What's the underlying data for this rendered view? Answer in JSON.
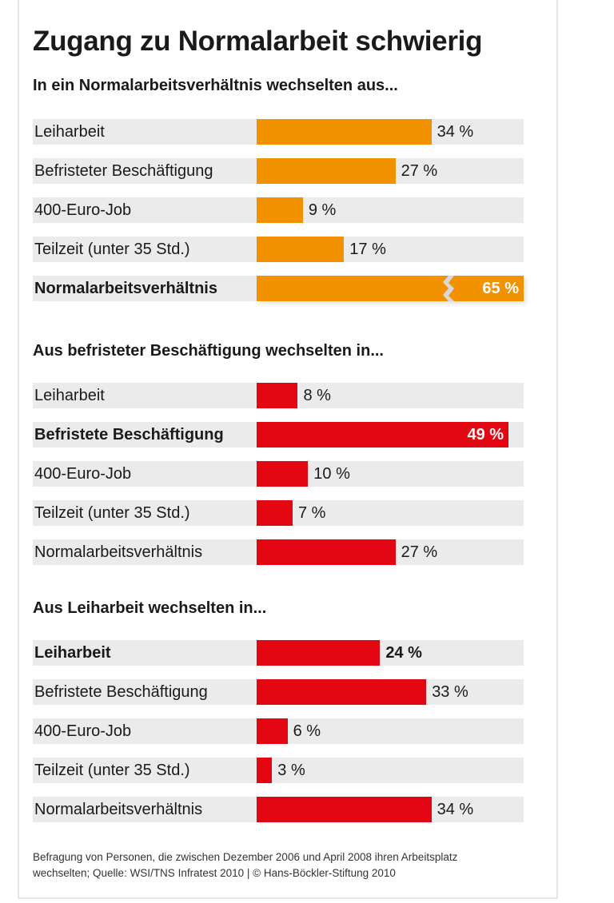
{
  "chart_data": {
    "type": "bar",
    "orientation": "horizontal",
    "title": "Zugang zu Normalarbeit schwierig",
    "unit": "%",
    "xlim": [
      0,
      52
    ],
    "grid": false,
    "colors": {
      "orange": "#f39200",
      "red": "#e30613",
      "track": "#ebebeb"
    },
    "panels": [
      {
        "title": "In ein Normalarbeitsverhältnis wechselten aus...",
        "color": "#f39200",
        "rows": [
          {
            "label": "Leiharbeit",
            "value": 34,
            "value_label": "34 %",
            "highlight": false
          },
          {
            "label": "Befristeter Beschäftigung",
            "value": 27,
            "value_label": "27 %",
            "highlight": false
          },
          {
            "label": "400-Euro-Job",
            "value": 9,
            "value_label": "9 %",
            "highlight": false
          },
          {
            "label": "Teilzeit (unter 35 Std.)",
            "value": 17,
            "value_label": "17 %",
            "highlight": false
          },
          {
            "label": "Normalarbeitsverhältnis",
            "value": 65,
            "value_label": "65 %",
            "highlight": true,
            "broken_axis": true
          }
        ]
      },
      {
        "title": "Aus befristeter Beschäftigung wechselten in...",
        "color": "#e30613",
        "rows": [
          {
            "label": "Leiharbeit",
            "value": 8,
            "value_label": "8 %",
            "highlight": false
          },
          {
            "label": "Befristete Beschäftigung",
            "value": 49,
            "value_label": "49 %",
            "highlight": true
          },
          {
            "label": "400-Euro-Job",
            "value": 10,
            "value_label": "10 %",
            "highlight": false
          },
          {
            "label": "Teilzeit (unter 35 Std.)",
            "value": 7,
            "value_label": "7 %",
            "highlight": false
          },
          {
            "label": "Normalarbeitsverhältnis",
            "value": 27,
            "value_label": "27 %",
            "highlight": false
          }
        ]
      },
      {
        "title": "Aus Leiharbeit wechselten in...",
        "color": "#e30613",
        "rows": [
          {
            "label": "Leiharbeit",
            "value": 24,
            "value_label": "24 %",
            "highlight": true
          },
          {
            "label": "Befristete Beschäftigung",
            "value": 33,
            "value_label": "33 %",
            "highlight": false
          },
          {
            "label": "400-Euro-Job",
            "value": 6,
            "value_label": "6 %",
            "highlight": false
          },
          {
            "label": "Teilzeit (unter 35 Std.)",
            "value": 3,
            "value_label": "3 %",
            "highlight": false
          },
          {
            "label": "Normalarbeitsverhältnis",
            "value": 34,
            "value_label": "34 %",
            "highlight": false
          }
        ]
      }
    ],
    "note": "Befragung von Personen, die zwischen Dezember 2006 und April 2008 ihren Arbeitsplatz wechselten; Quelle: WSI/TNS Infratest 2010 | © Hans-Böckler-Stiftung 2010"
  }
}
